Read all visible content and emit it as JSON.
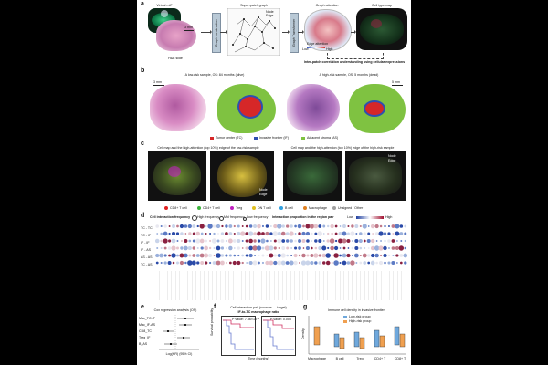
{
  "panel_a": {
    "label": "a",
    "virtual_mif": "Virtual mIF",
    "he_slide": "H&E slide",
    "scale": "3 mm",
    "graph_construction": "Graph construction",
    "super_patch_graph": "Super-patch graph",
    "node": "Node",
    "edge": "Edge",
    "graph_transformer": "Graph Transformer",
    "graph_attention": "Graph attention",
    "edge_attention": "Edge attention",
    "low": "Low",
    "high": "High",
    "cell_type_map": "Cell type map",
    "caption": "Inter-patch correlation understanding using cellular expressions"
  },
  "panel_b": {
    "label": "b",
    "low_risk_title": "A low-risk sample, OS: 84 months (alive)",
    "high_risk_title": "A high-risk sample, OS: 5 months (dead)",
    "scale_left": "3 mm",
    "scale_right": "5 mm",
    "legend": [
      {
        "label": "Tumor center (TC)",
        "color": "#d62728"
      },
      {
        "label": "Invasive frontier (IF)",
        "color": "#2f4fb0"
      },
      {
        "label": "Adjacent stroma (AS)",
        "color": "#7fc241"
      }
    ]
  },
  "panel_c": {
    "label": "c",
    "title_left": "Cell map and the high-attention (top 10%) edge of the low-risk sample",
    "title_right": "Cell map and the high-attention (top 10%) edge of the high-risk sample",
    "node": "Node",
    "edge": "Edge",
    "cell_legend": [
      {
        "label": "CD8+ T cell",
        "color": "#e02020"
      },
      {
        "label": "CD4+ T cell",
        "color": "#3cb43c"
      },
      {
        "label": "Treg",
        "color": "#c020c0"
      },
      {
        "label": "DN T cell",
        "color": "#e0c020"
      },
      {
        "label": "B cell",
        "color": "#30a0e0"
      },
      {
        "label": "Macrophage",
        "color": "#e08020"
      },
      {
        "label": "Unsigned / Other",
        "color": "#a0a0a0"
      }
    ]
  },
  "panel_d": {
    "label": "d",
    "freq_title": "Cell interaction frequency",
    "freq_high": "High frequency",
    "freq_mid": "Mid frequency",
    "freq_low": "Low frequency",
    "prop_title": "Interaction proportion in the region pair",
    "low": "Low",
    "high": "High",
    "rows": [
      "TC - TC",
      "TC - IF",
      "IF - IF",
      "IF - AS",
      "AS - AS",
      "TC - AS"
    ]
  },
  "panel_e": {
    "label": "e",
    "title": "Cox regression analysis (OS)",
    "xlabel": "Log(HR) (95% CI)",
    "rows": [
      "Mac_TC-IF",
      "Mac_IF-AS",
      "CD8_TC",
      "Treg_IF",
      "B_AS"
    ]
  },
  "panel_f": {
    "label": "f",
    "title": "IF-to-TC macrophage ratio",
    "subtitle": "Cell interaction pair (sources → target)",
    "pvalue_left": "P value: 7.86×10⁻³",
    "pvalue_right": "P value: 0.005",
    "ylabel": "Survival probability",
    "xlabel": "Time (months)"
  },
  "panel_g": {
    "label": "g",
    "title": "Immune cell density in invasive frontier",
    "legend": [
      {
        "label": "Low-risk group",
        "color": "#6fa8dc"
      },
      {
        "label": "High-risk group",
        "color": "#f0a050"
      }
    ],
    "categories": [
      "Macrophage",
      "B cell",
      "Treg",
      "CD4+ T",
      "CD8+ T"
    ],
    "ylabel": "Density"
  }
}
